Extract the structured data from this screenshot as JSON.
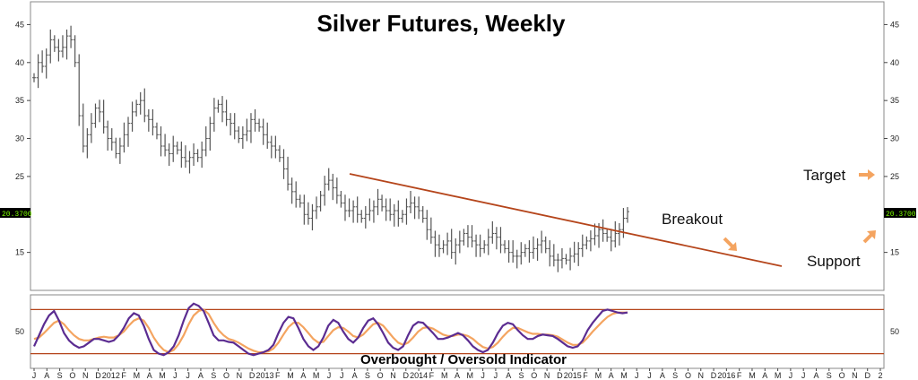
{
  "chart_data": [
    {
      "type": "ohlc",
      "title": "Silver Futures, Weekly",
      "ylim": [
        10,
        48
      ],
      "y_ticks": [
        15,
        20,
        25,
        30,
        35,
        40,
        45
      ],
      "last_price_label": "20.3700",
      "colors": {
        "bars": "#555555",
        "trendline": "#b5451b",
        "arrow": "#f4a460",
        "price_box": "#000000"
      },
      "x_labels": [
        "J",
        "A",
        "S",
        "O",
        "N",
        "D",
        "2012",
        "F",
        "M",
        "A",
        "M",
        "J",
        "J",
        "A",
        "S",
        "O",
        "N",
        "D",
        "2013",
        "F",
        "M",
        "A",
        "M",
        "J",
        "J",
        "A",
        "S",
        "O",
        "N",
        "D",
        "2014",
        "F",
        "M",
        "A",
        "M",
        "J",
        "J",
        "A",
        "S",
        "O",
        "N",
        "D",
        "2015",
        "F",
        "M",
        "A",
        "M",
        "J",
        "J",
        "A",
        "S",
        "O",
        "N",
        "D",
        "2016",
        "F",
        "M",
        "A",
        "M",
        "J",
        "J",
        "A",
        "S",
        "O",
        "N",
        "D",
        "2"
      ],
      "closes": [
        38.0,
        40.0,
        39.5,
        41.0,
        43.0,
        42.0,
        41.5,
        42.0,
        43.5,
        43.0,
        40.0,
        33.0,
        29.0,
        30.5,
        32.0,
        34.0,
        33.5,
        31.5,
        30.0,
        29.5,
        28.0,
        29.0,
        30.5,
        32.0,
        33.5,
        34.5,
        35.0,
        33.0,
        32.5,
        31.5,
        30.5,
        29.0,
        28.5,
        28.0,
        29.0,
        28.5,
        27.5,
        27.0,
        27.5,
        28.0,
        27.5,
        28.5,
        30.0,
        32.0,
        34.0,
        34.5,
        33.5,
        32.5,
        32.0,
        31.0,
        30.0,
        30.5,
        31.0,
        32.5,
        32.0,
        31.5,
        30.5,
        29.5,
        29.0,
        28.5,
        27.5,
        26.0,
        24.0,
        23.0,
        22.0,
        21.5,
        20.0,
        19.5,
        20.5,
        21.0,
        22.5,
        24.0,
        24.5,
        23.5,
        22.5,
        21.5,
        20.5,
        20.5,
        21.0,
        20.0,
        19.5,
        20.0,
        20.5,
        21.0,
        22.0,
        21.0,
        20.5,
        20.0,
        20.5,
        19.5,
        20.0,
        21.0,
        21.5,
        21.0,
        20.5,
        19.5,
        18.0,
        17.0,
        16.0,
        15.5,
        16.0,
        16.5,
        15.0,
        16.0,
        16.5,
        17.5,
        17.0,
        16.5,
        16.0,
        15.5,
        16.0,
        17.0,
        17.5,
        17.0,
        16.0,
        15.5,
        15.0,
        14.5,
        14.5,
        15.0,
        15.5,
        15.0,
        15.5,
        16.0,
        16.5,
        15.5,
        14.5,
        14.0,
        14.0,
        14.2,
        14.0,
        14.5,
        14.8,
        15.5,
        16.0,
        16.5,
        16.8,
        17.2,
        18.0,
        17.5,
        17.0,
        16.5,
        17.5,
        18.0,
        19.5,
        20.37
      ]
    },
    {
      "type": "line",
      "title": "Overbought / Oversold Indicator",
      "ylim": [
        0,
        100
      ],
      "y_ticks": [
        50
      ],
      "upper_band": 80,
      "lower_band": 20,
      "colors": {
        "fast": "#5b2c91",
        "slow": "#f4a460",
        "bands": "#b5451b"
      },
      "fast": [
        30,
        45,
        60,
        72,
        78,
        65,
        48,
        38,
        32,
        28,
        30,
        35,
        40,
        40,
        38,
        36,
        38,
        45,
        55,
        68,
        75,
        72,
        58,
        40,
        25,
        20,
        18,
        22,
        30,
        45,
        65,
        82,
        88,
        85,
        78,
        62,
        45,
        38,
        38,
        36,
        35,
        30,
        25,
        20,
        18,
        20,
        22,
        25,
        32,
        48,
        62,
        70,
        68,
        55,
        40,
        30,
        25,
        30,
        42,
        58,
        66,
        62,
        50,
        40,
        35,
        42,
        55,
        65,
        68,
        60,
        48,
        35,
        28,
        25,
        30,
        45,
        58,
        63,
        62,
        55,
        48,
        40,
        40,
        42,
        45,
        48,
        45,
        38,
        30,
        25,
        22,
        25,
        35,
        48,
        58,
        62,
        60,
        52,
        45,
        40,
        40,
        44,
        46,
        45,
        44,
        40,
        35,
        30,
        28,
        30,
        38,
        52,
        62,
        70,
        78,
        80,
        78,
        76,
        75,
        76
      ],
      "slow": [
        40,
        42,
        48,
        55,
        62,
        65,
        60,
        52,
        45,
        40,
        38,
        38,
        40,
        42,
        43,
        42,
        42,
        45,
        50,
        58,
        65,
        68,
        65,
        55,
        42,
        32,
        25,
        22,
        25,
        33,
        45,
        60,
        72,
        78,
        80,
        74,
        62,
        52,
        45,
        40,
        38,
        35,
        31,
        27,
        24,
        22,
        22,
        23,
        27,
        35,
        46,
        56,
        62,
        62,
        56,
        48,
        40,
        35,
        36,
        44,
        52,
        56,
        55,
        50,
        44,
        42,
        46,
        53,
        60,
        62,
        58,
        50,
        42,
        35,
        32,
        35,
        42,
        50,
        55,
        56,
        54,
        50,
        46,
        44,
        44,
        46,
        46,
        44,
        40,
        34,
        29,
        27,
        29,
        35,
        43,
        50,
        55,
        55,
        52,
        49,
        47,
        47,
        46,
        46,
        45,
        43,
        39,
        35,
        32,
        32,
        35,
        42,
        50,
        57,
        64,
        70,
        74,
        76,
        76,
        76
      ]
    }
  ],
  "annotations": {
    "target": "Target",
    "breakout": "Breakout",
    "support": "Support"
  }
}
